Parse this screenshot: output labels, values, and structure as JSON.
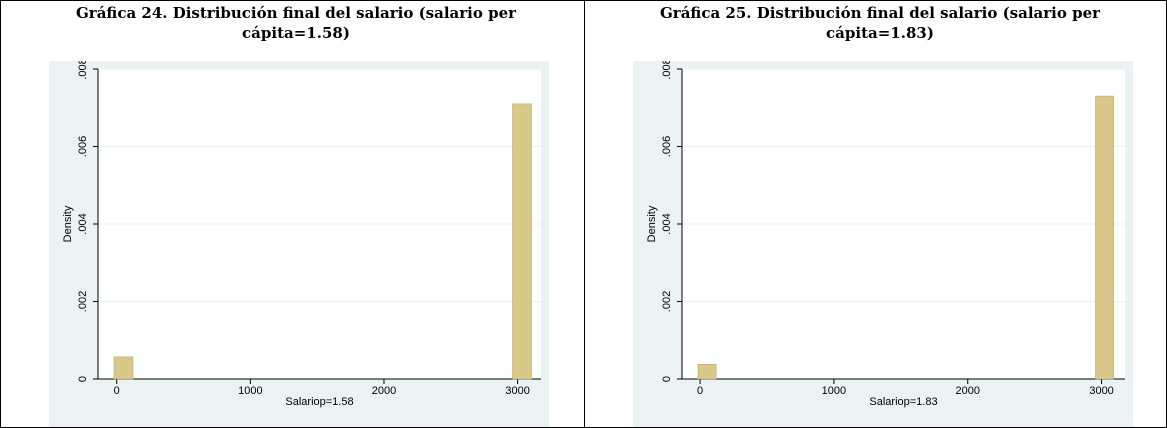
{
  "chart_data": [
    {
      "type": "histogram",
      "title": "Gráfica 24. Distribución final del salario (salario per cápita=1.58)",
      "x_label": "Salariop=1.58",
      "y_label": "Density",
      "bins": [
        -20,
        122,
        264,
        406,
        548,
        690,
        832,
        974,
        1116,
        1258,
        1400,
        1542,
        1684,
        1826,
        1968,
        2110,
        2252,
        2394,
        2536,
        2678,
        2820,
        2962,
        3104
      ],
      "values": [
        0.00057,
        0,
        0,
        0,
        0,
        0,
        0,
        0,
        0,
        0,
        0,
        0,
        0,
        0,
        0,
        0,
        0,
        0,
        0,
        0,
        0,
        0.0071
      ],
      "color": "#d8c98a",
      "xlim": [
        -140,
        3175
      ],
      "xticks": [
        0,
        1000,
        2000,
        3000
      ],
      "ylim": [
        0,
        0.008
      ],
      "yticks": [
        0,
        {
          "value": 0.002,
          "label": ".002"
        },
        {
          "value": 0.004,
          "label": ".004"
        },
        {
          "value": 0.006,
          "label": ".006"
        },
        {
          "value": 0.008,
          "label": ".008"
        }
      ],
      "grid": true
    },
    {
      "type": "histogram",
      "title": "Gráfica 25. Distribución final del salario (salario per cápita=1.83)",
      "x_label": "Salariop=1.83",
      "y_label": "Density",
      "bins": [
        -15,
        120,
        255,
        390,
        525,
        660,
        795,
        930,
        1065,
        1200,
        1335,
        1470,
        1605,
        1740,
        1875,
        2010,
        2145,
        2280,
        2415,
        2550,
        2685,
        2820,
        2955,
        3090
      ],
      "values": [
        0.00038,
        0,
        0,
        0,
        0,
        0,
        0,
        0,
        0,
        0,
        0,
        0,
        0,
        0,
        0,
        0,
        0,
        0,
        0,
        0,
        0,
        0,
        0.0073
      ],
      "color": "#d8c98a",
      "xlim": [
        -135,
        3175
      ],
      "xticks": [
        0,
        1000,
        2000,
        3000
      ],
      "ylim": [
        0,
        0.008
      ],
      "yticks": [
        0,
        {
          "value": 0.002,
          "label": ".002"
        },
        {
          "value": 0.004,
          "label": ".004"
        },
        {
          "value": 0.006,
          "label": ".006"
        },
        {
          "value": 0.008,
          "label": ".008"
        }
      ],
      "grid": true
    }
  ]
}
